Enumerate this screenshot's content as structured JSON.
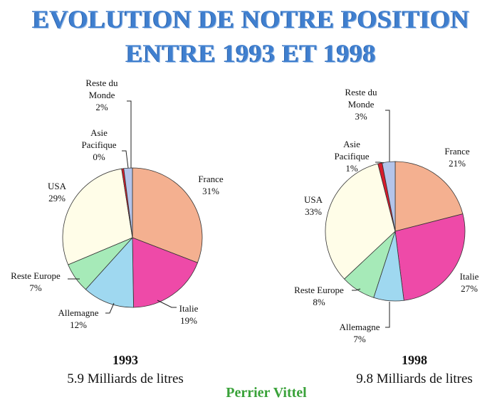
{
  "title_line1": "EVOLUTION DE NOTRE POSITION",
  "title_line2": "ENTRE 1993 ET 1998",
  "brand": "Perrier Vittel",
  "colors": {
    "title": "#3f7fcf",
    "brand": "#3aa23a",
    "France": "#f4b090",
    "Italie": "#ee4aa8",
    "Allemagne": "#9fd8f0",
    "Reste Europe": "#a6eab8",
    "USA": "#fffde8",
    "Asie Pacifique": "#d81c2c",
    "Reste du Monde": "#b4c4ea"
  },
  "chart_data": [
    {
      "type": "pie",
      "year": "1993",
      "total": "5.9 Milliards de litres",
      "slices": [
        {
          "category": "France",
          "value": 31,
          "label_lines": [
            "France",
            "31%"
          ]
        },
        {
          "category": "Italie",
          "value": 19,
          "label_lines": [
            "Italie",
            "19%"
          ]
        },
        {
          "category": "Allemagne",
          "value": 12,
          "label_lines": [
            "Allemagne",
            "12%"
          ]
        },
        {
          "category": "Reste Europe",
          "value": 7,
          "label_lines": [
            "Reste Europe",
            "7%"
          ]
        },
        {
          "category": "USA",
          "value": 29,
          "label_lines": [
            "USA",
            "29%"
          ]
        },
        {
          "category": "Asie Pacifique",
          "value": 0.5,
          "label_lines": [
            "Asie",
            "Pacifique",
            "0%"
          ]
        },
        {
          "category": "Reste du Monde",
          "value": 2,
          "label_lines": [
            "Reste du",
            "Monde",
            "2%"
          ]
        }
      ]
    },
    {
      "type": "pie",
      "year": "1998",
      "total": "9.8 Milliards de litres",
      "slices": [
        {
          "category": "France",
          "value": 21,
          "label_lines": [
            "France",
            "21%"
          ]
        },
        {
          "category": "Italie",
          "value": 27,
          "label_lines": [
            "Italie",
            "27%"
          ]
        },
        {
          "category": "Allemagne",
          "value": 7,
          "label_lines": [
            "Allemagne",
            "7%"
          ]
        },
        {
          "category": "Reste Europe",
          "value": 8,
          "label_lines": [
            "Reste Europe",
            "8%"
          ]
        },
        {
          "category": "USA",
          "value": 33,
          "label_lines": [
            "USA",
            "33%"
          ]
        },
        {
          "category": "Asie Pacifique",
          "value": 1,
          "label_lines": [
            "Asie",
            "Pacifique",
            "1%"
          ]
        },
        {
          "category": "Reste du Monde",
          "value": 3,
          "label_lines": [
            "Reste du",
            "Monde",
            "3%"
          ]
        }
      ]
    }
  ]
}
